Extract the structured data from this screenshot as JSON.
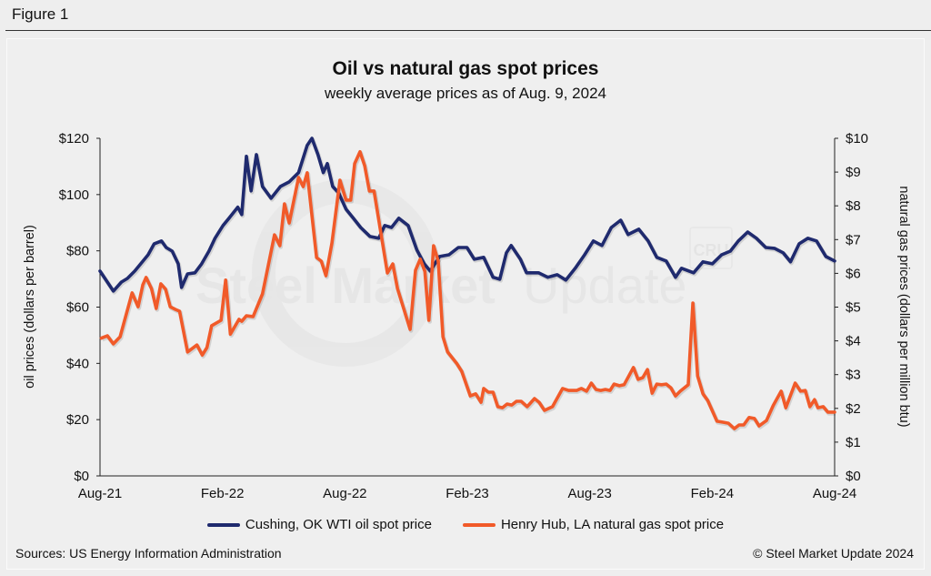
{
  "figure_label": "Figure 1",
  "watermark": {
    "text_bold": "Steel Market",
    "text_light": "Update",
    "badge": "CRU"
  },
  "footer": {
    "source": "Sources: US Energy Information Administration",
    "copyright": "© Steel Market Update 2024"
  },
  "colors": {
    "oil": "#1f2a6e",
    "gas": "#f15a29",
    "background": "#efefef"
  },
  "chart_data": {
    "type": "line",
    "title": "Oil vs natural gas spot prices",
    "subtitle": "weekly average prices as of Aug. 9, 2024",
    "ylabel_left": "oil prices (dollars per barrel)",
    "ylabel_right": "natural gas prices (dollars per million btu)",
    "ylim_left": [
      0,
      120
    ],
    "ylim_right": [
      0,
      10
    ],
    "yticks_left": [
      "$0",
      "$20",
      "$40",
      "$60",
      "$80",
      "$100",
      "$120"
    ],
    "yticks_right": [
      "$0",
      "$1",
      "$2",
      "$3",
      "$4",
      "$5",
      "$6",
      "$7",
      "$8",
      "$9",
      "$10"
    ],
    "xlim": [
      "2021-08-06",
      "2024-08-09"
    ],
    "xticks": [
      "Aug-21",
      "Feb-22",
      "Aug-22",
      "Feb-23",
      "Aug-23",
      "Feb-24",
      "Aug-24"
    ],
    "grid": false,
    "legend_placement": "bottom",
    "series": [
      {
        "name": "Cushing, OK WTI oil spot price",
        "axis": "left",
        "color": "#1f2a6e",
        "points": [
          [
            "2021-08-06",
            72.8
          ],
          [
            "2021-08-17",
            68.9
          ],
          [
            "2021-08-26",
            65.7
          ],
          [
            "2021-09-07",
            68.9
          ],
          [
            "2021-09-16",
            70.2
          ],
          [
            "2021-09-27",
            72.8
          ],
          [
            "2021-10-06",
            75.4
          ],
          [
            "2021-10-17",
            78.6
          ],
          [
            "2021-10-26",
            82.5
          ],
          [
            "2021-11-06",
            83.5
          ],
          [
            "2021-11-13",
            81.2
          ],
          [
            "2021-11-22",
            79.9
          ],
          [
            "2021-12-01",
            75.4
          ],
          [
            "2021-12-06",
            67.0
          ],
          [
            "2021-12-15",
            71.8
          ],
          [
            "2021-12-26",
            72.2
          ],
          [
            "2022-01-05",
            75.4
          ],
          [
            "2022-01-16",
            79.9
          ],
          [
            "2022-01-25",
            84.5
          ],
          [
            "2022-02-06",
            89.0
          ],
          [
            "2022-02-15",
            91.6
          ],
          [
            "2022-02-28",
            95.5
          ],
          [
            "2022-03-06",
            92.9
          ],
          [
            "2022-03-13",
            113.6
          ],
          [
            "2022-03-20",
            101.3
          ],
          [
            "2022-03-28",
            114.2
          ],
          [
            "2022-04-06",
            102.9
          ],
          [
            "2022-04-19",
            98.7
          ],
          [
            "2022-05-03",
            102.9
          ],
          [
            "2022-05-16",
            104.5
          ],
          [
            "2022-05-30",
            107.8
          ],
          [
            "2022-06-12",
            117.5
          ],
          [
            "2022-06-19",
            120.0
          ],
          [
            "2022-06-28",
            114.2
          ],
          [
            "2022-07-06",
            107.8
          ],
          [
            "2022-07-12",
            111.0
          ],
          [
            "2022-07-20",
            102.9
          ],
          [
            "2022-07-29",
            100.6
          ],
          [
            "2022-08-09",
            94.8
          ],
          [
            "2022-08-20",
            91.6
          ],
          [
            "2022-08-31",
            88.3
          ],
          [
            "2022-09-14",
            85.1
          ],
          [
            "2022-09-27",
            84.5
          ],
          [
            "2022-10-06",
            89.0
          ],
          [
            "2022-10-16",
            88.3
          ],
          [
            "2022-10-27",
            91.6
          ],
          [
            "2022-11-10",
            89.0
          ],
          [
            "2022-11-23",
            80.3
          ],
          [
            "2022-12-04",
            75.4
          ],
          [
            "2022-12-13",
            72.8
          ],
          [
            "2022-12-27",
            78.0
          ],
          [
            "2023-01-10",
            78.6
          ],
          [
            "2023-01-24",
            81.2
          ],
          [
            "2023-02-06",
            81.2
          ],
          [
            "2023-02-17",
            77.0
          ],
          [
            "2023-03-03",
            77.7
          ],
          [
            "2023-03-17",
            70.6
          ],
          [
            "2023-03-27",
            69.9
          ],
          [
            "2023-04-06",
            79.3
          ],
          [
            "2023-04-13",
            81.9
          ],
          [
            "2023-04-27",
            77.0
          ],
          [
            "2023-05-06",
            72.2
          ],
          [
            "2023-05-24",
            72.2
          ],
          [
            "2023-06-07",
            70.6
          ],
          [
            "2023-06-21",
            71.5
          ],
          [
            "2023-07-04",
            69.6
          ],
          [
            "2023-07-18",
            73.8
          ],
          [
            "2023-08-01",
            78.6
          ],
          [
            "2023-08-14",
            83.5
          ],
          [
            "2023-08-27",
            81.9
          ],
          [
            "2023-09-10",
            88.3
          ],
          [
            "2023-09-24",
            90.9
          ],
          [
            "2023-10-05",
            85.8
          ],
          [
            "2023-10-21",
            87.7
          ],
          [
            "2023-11-04",
            83.5
          ],
          [
            "2023-11-17",
            77.7
          ],
          [
            "2023-12-01",
            76.4
          ],
          [
            "2023-12-15",
            70.6
          ],
          [
            "2023-12-24",
            73.8
          ],
          [
            "2024-01-11",
            72.2
          ],
          [
            "2024-01-25",
            76.1
          ],
          [
            "2024-02-08",
            75.4
          ],
          [
            "2024-02-22",
            78.6
          ],
          [
            "2024-03-06",
            79.9
          ],
          [
            "2024-03-18",
            83.5
          ],
          [
            "2024-04-01",
            86.7
          ],
          [
            "2024-04-14",
            84.5
          ],
          [
            "2024-04-28",
            81.2
          ],
          [
            "2024-05-11",
            80.9
          ],
          [
            "2024-05-24",
            79.3
          ],
          [
            "2024-06-04",
            76.1
          ],
          [
            "2024-06-17",
            82.5
          ],
          [
            "2024-06-30",
            84.5
          ],
          [
            "2024-07-13",
            83.5
          ],
          [
            "2024-07-27",
            78.0
          ],
          [
            "2024-08-09",
            76.4
          ]
        ]
      },
      {
        "name": "Henry Hub, LA natural gas spot price",
        "axis": "right",
        "color": "#f15a29",
        "points": [
          [
            "2021-08-08",
            4.08
          ],
          [
            "2021-08-17",
            4.15
          ],
          [
            "2021-08-26",
            3.91
          ],
          [
            "2021-09-05",
            4.12
          ],
          [
            "2021-09-23",
            5.42
          ],
          [
            "2021-10-02",
            5.01
          ],
          [
            "2021-10-09",
            5.66
          ],
          [
            "2021-10-14",
            5.88
          ],
          [
            "2021-10-22",
            5.55
          ],
          [
            "2021-10-29",
            4.96
          ],
          [
            "2021-11-05",
            5.69
          ],
          [
            "2021-11-12",
            5.53
          ],
          [
            "2021-11-19",
            5.01
          ],
          [
            "2021-11-27",
            4.93
          ],
          [
            "2021-12-03",
            4.88
          ],
          [
            "2021-12-15",
            3.67
          ],
          [
            "2021-12-29",
            3.88
          ],
          [
            "2022-01-06",
            3.58
          ],
          [
            "2022-01-13",
            3.8
          ],
          [
            "2022-01-20",
            4.45
          ],
          [
            "2022-02-03",
            4.61
          ],
          [
            "2022-02-10",
            5.8
          ],
          [
            "2022-02-17",
            4.2
          ],
          [
            "2022-03-02",
            4.64
          ],
          [
            "2022-03-06",
            4.58
          ],
          [
            "2022-03-13",
            4.74
          ],
          [
            "2022-03-23",
            4.72
          ],
          [
            "2022-04-06",
            5.39
          ],
          [
            "2022-04-24",
            7.14
          ],
          [
            "2022-05-02",
            6.82
          ],
          [
            "2022-05-09",
            8.06
          ],
          [
            "2022-05-16",
            7.49
          ],
          [
            "2022-05-30",
            8.84
          ],
          [
            "2022-06-06",
            8.57
          ],
          [
            "2022-06-12",
            8.98
          ],
          [
            "2022-06-26",
            6.47
          ],
          [
            "2022-07-03",
            6.36
          ],
          [
            "2022-07-10",
            5.93
          ],
          [
            "2022-07-19",
            6.9
          ],
          [
            "2022-07-31",
            8.76
          ],
          [
            "2022-08-09",
            8.17
          ],
          [
            "2022-08-16",
            8.17
          ],
          [
            "2022-08-22",
            9.25
          ],
          [
            "2022-08-30",
            9.6
          ],
          [
            "2022-09-06",
            9.19
          ],
          [
            "2022-09-13",
            8.44
          ],
          [
            "2022-09-20",
            8.44
          ],
          [
            "2022-10-10",
            6.01
          ],
          [
            "2022-10-18",
            6.28
          ],
          [
            "2022-10-25",
            5.55
          ],
          [
            "2022-11-13",
            4.34
          ],
          [
            "2022-11-21",
            6.09
          ],
          [
            "2022-11-28",
            6.42
          ],
          [
            "2022-12-05",
            6.06
          ],
          [
            "2022-12-11",
            4.61
          ],
          [
            "2022-12-18",
            6.82
          ],
          [
            "2022-12-25",
            6.36
          ],
          [
            "2023-01-01",
            4.12
          ],
          [
            "2023-01-08",
            3.67
          ],
          [
            "2023-01-22",
            3.32
          ],
          [
            "2023-01-29",
            3.1
          ],
          [
            "2023-02-11",
            2.37
          ],
          [
            "2023-02-19",
            2.43
          ],
          [
            "2023-02-27",
            2.18
          ],
          [
            "2023-03-03",
            2.59
          ],
          [
            "2023-03-10",
            2.48
          ],
          [
            "2023-03-17",
            2.48
          ],
          [
            "2023-03-24",
            2.05
          ],
          [
            "2023-03-31",
            2.02
          ],
          [
            "2023-04-07",
            2.13
          ],
          [
            "2023-04-14",
            2.1
          ],
          [
            "2023-04-21",
            2.21
          ],
          [
            "2023-04-28",
            2.21
          ],
          [
            "2023-05-07",
            2.05
          ],
          [
            "2023-05-18",
            2.29
          ],
          [
            "2023-05-25",
            2.18
          ],
          [
            "2023-06-02",
            1.94
          ],
          [
            "2023-06-14",
            2.05
          ],
          [
            "2023-06-29",
            2.59
          ],
          [
            "2023-07-08",
            2.53
          ],
          [
            "2023-07-20",
            2.53
          ],
          [
            "2023-07-27",
            2.59
          ],
          [
            "2023-08-04",
            2.51
          ],
          [
            "2023-08-11",
            2.75
          ],
          [
            "2023-08-18",
            2.56
          ],
          [
            "2023-08-25",
            2.53
          ],
          [
            "2023-09-01",
            2.56
          ],
          [
            "2023-09-08",
            2.53
          ],
          [
            "2023-09-14",
            2.72
          ],
          [
            "2023-09-22",
            2.67
          ],
          [
            "2023-09-29",
            2.7
          ],
          [
            "2023-10-13",
            3.21
          ],
          [
            "2023-10-20",
            2.86
          ],
          [
            "2023-10-27",
            2.91
          ],
          [
            "2023-11-03",
            3.15
          ],
          [
            "2023-11-10",
            2.45
          ],
          [
            "2023-11-17",
            2.72
          ],
          [
            "2023-11-24",
            2.7
          ],
          [
            "2023-12-01",
            2.72
          ],
          [
            "2023-12-08",
            2.61
          ],
          [
            "2023-12-15",
            2.37
          ],
          [
            "2023-12-22",
            2.51
          ],
          [
            "2024-01-03",
            2.7
          ],
          [
            "2024-01-06",
            3.77
          ],
          [
            "2024-01-10",
            5.12
          ],
          [
            "2024-01-17",
            2.96
          ],
          [
            "2024-01-25",
            2.43
          ],
          [
            "2024-02-01",
            2.24
          ],
          [
            "2024-02-15",
            1.62
          ],
          [
            "2024-02-24",
            1.59
          ],
          [
            "2024-03-03",
            1.56
          ],
          [
            "2024-03-12",
            1.4
          ],
          [
            "2024-03-19",
            1.51
          ],
          [
            "2024-03-26",
            1.51
          ],
          [
            "2024-04-03",
            1.73
          ],
          [
            "2024-04-11",
            1.7
          ],
          [
            "2024-04-18",
            1.48
          ],
          [
            "2024-04-29",
            1.64
          ],
          [
            "2024-05-09",
            2.08
          ],
          [
            "2024-05-21",
            2.51
          ],
          [
            "2024-05-28",
            2.02
          ],
          [
            "2024-06-11",
            2.75
          ],
          [
            "2024-06-19",
            2.51
          ],
          [
            "2024-06-26",
            2.53
          ],
          [
            "2024-07-03",
            2.05
          ],
          [
            "2024-07-10",
            2.26
          ],
          [
            "2024-07-15",
            2.02
          ],
          [
            "2024-07-23",
            2.05
          ],
          [
            "2024-07-30",
            1.89
          ],
          [
            "2024-08-09",
            1.89
          ]
        ]
      }
    ]
  }
}
